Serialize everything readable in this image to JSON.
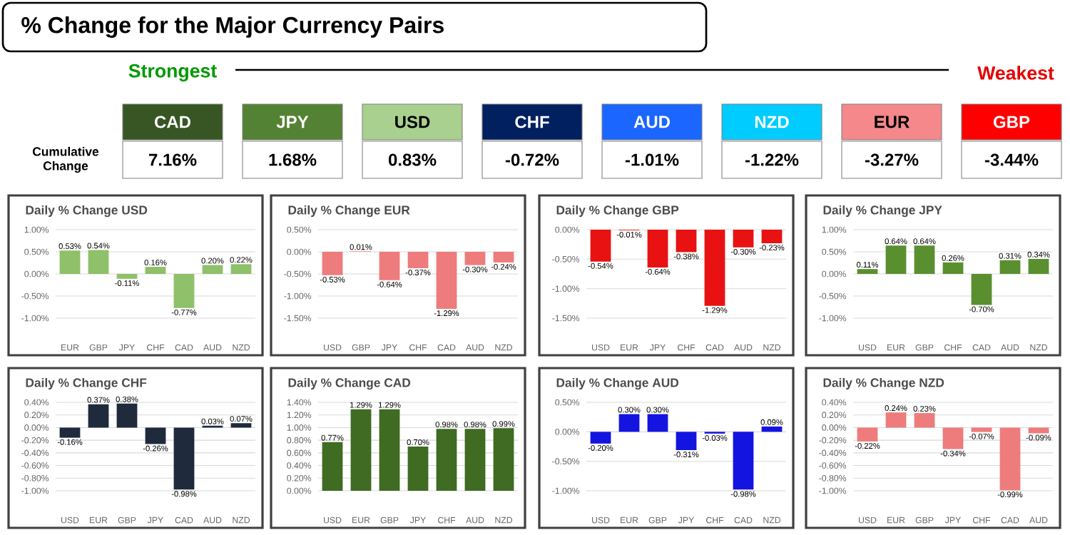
{
  "chart_data": [
    {
      "type": "other",
      "title": "% Change for the Major Currency Pairs",
      "categories": [
        "CAD",
        "JPY",
        "USD",
        "CHF",
        "AUD",
        "NZD",
        "EUR",
        "GBP"
      ],
      "value_labels": [
        "7.16%",
        "1.68%",
        "0.83%",
        "-0.72%",
        "-1.01%",
        "-1.22%",
        "-3.27%",
        "-3.44%"
      ],
      "colors": [
        "#375623",
        "#548235",
        "#a9d08e",
        "#002060",
        "#1a66ff",
        "#00ccff",
        "#f4888a",
        "#ff0000"
      ],
      "annotations": [
        "Strongest",
        "Weakest",
        "Cumulative Change"
      ]
    },
    {
      "type": "bar",
      "title": "Daily % Change USD",
      "categories": [
        "EUR",
        "GBP",
        "JPY",
        "CHF",
        "CAD",
        "AUD",
        "NZD"
      ],
      "values": [
        0.53,
        0.54,
        -0.11,
        0.16,
        -0.77,
        0.2,
        0.22
      ],
      "value_labels": [
        "0.53%",
        "0.54%",
        "-0.11%",
        "0.16%",
        "-0.77%",
        "0.20%",
        "0.22%"
      ],
      "color": "#8fc06a",
      "ylim": [
        -1,
        1
      ],
      "yticks": [
        {
          "value": -1,
          "label": "-1.00%"
        },
        {
          "value": -0.5,
          "label": "-0.50%"
        },
        {
          "value": 0,
          "label": "0.00%"
        },
        {
          "value": 0.5,
          "label": "0.50%"
        },
        {
          "value": 1,
          "label": "1.00%"
        }
      ],
      "grid": "y"
    },
    {
      "type": "bar",
      "title": "Daily % Change EUR",
      "categories": [
        "USD",
        "GBP",
        "JPY",
        "CHF",
        "CAD",
        "AUD",
        "NZD"
      ],
      "values": [
        -0.53,
        0.01,
        -0.64,
        -0.37,
        -1.29,
        -0.3,
        -0.24
      ],
      "value_labels": [
        "-0.53%",
        "0.01%",
        "-0.64%",
        "-0.37%",
        "-1.29%",
        "-0.30%",
        "-0.24%"
      ],
      "color": "#ee7c7c",
      "ylim": [
        -1.5,
        0.5
      ],
      "yticks": [
        {
          "value": -1.5,
          "label": "-1.50%"
        },
        {
          "value": -1,
          "label": "-1.00%"
        },
        {
          "value": -0.5,
          "label": "-0.50%"
        },
        {
          "value": 0,
          "label": "0.00%"
        },
        {
          "value": 0.5,
          "label": "0.50%"
        }
      ],
      "grid": "y"
    },
    {
      "type": "bar",
      "title": "Daily % Change GBP",
      "categories": [
        "USD",
        "EUR",
        "JPY",
        "CHF",
        "CAD",
        "AUD",
        "NZD"
      ],
      "values": [
        -0.54,
        -0.01,
        -0.64,
        -0.38,
        -1.29,
        -0.3,
        -0.23
      ],
      "value_labels": [
        "-0.54%",
        "-0.01%",
        "-0.64%",
        "-0.38%",
        "-1.29%",
        "-0.30%",
        "-0.23%"
      ],
      "color": "#e81212",
      "ylim": [
        -1.5,
        0
      ],
      "yticks": [
        {
          "value": -1.5,
          "label": "-1.50%"
        },
        {
          "value": -1,
          "label": "-1.00%"
        },
        {
          "value": -0.5,
          "label": "-0.50%"
        },
        {
          "value": 0,
          "label": "0.00%"
        }
      ],
      "grid": "y"
    },
    {
      "type": "bar",
      "title": "Daily % Change JPY",
      "categories": [
        "USD",
        "EUR",
        "GBP",
        "CHF",
        "CAD",
        "AUD",
        "NZD"
      ],
      "values": [
        0.11,
        0.64,
        0.64,
        0.26,
        -0.7,
        0.31,
        0.34
      ],
      "value_labels": [
        "0.11%",
        "0.64%",
        "0.64%",
        "0.26%",
        "-0.70%",
        "0.31%",
        "0.34%"
      ],
      "color": "#5a8f2f",
      "ylim": [
        -1,
        1
      ],
      "yticks": [
        {
          "value": -1,
          "label": "-1.00%"
        },
        {
          "value": -0.5,
          "label": "-0.50%"
        },
        {
          "value": 0,
          "label": "0.00%"
        },
        {
          "value": 0.5,
          "label": "0.50%"
        },
        {
          "value": 1,
          "label": "1.00%"
        }
      ],
      "grid": "y"
    },
    {
      "type": "bar",
      "title": "Daily % Change CHF",
      "categories": [
        "USD",
        "EUR",
        "GBP",
        "JPY",
        "CAD",
        "AUD",
        "NZD"
      ],
      "values": [
        -0.16,
        0.37,
        0.38,
        -0.26,
        -0.98,
        0.03,
        0.07
      ],
      "value_labels": [
        "-0.16%",
        "0.37%",
        "0.38%",
        "-0.26%",
        "-0.98%",
        "0.03%",
        "0.07%"
      ],
      "color": "#1f2a3c",
      "ylim": [
        -1,
        0.4
      ],
      "yticks": [
        {
          "value": -1,
          "label": "-1.00%"
        },
        {
          "value": -0.8,
          "label": "-0.80%"
        },
        {
          "value": -0.6,
          "label": "-0.60%"
        },
        {
          "value": -0.4,
          "label": "-0.40%"
        },
        {
          "value": -0.2,
          "label": "-0.20%"
        },
        {
          "value": 0,
          "label": "0.00%"
        },
        {
          "value": 0.2,
          "label": "0.20%"
        },
        {
          "value": 0.4,
          "label": "0.40%"
        }
      ],
      "grid": "y"
    },
    {
      "type": "bar",
      "title": "Daily % Change CAD",
      "categories": [
        "USD",
        "EUR",
        "GBP",
        "JPY",
        "CHF",
        "AUD",
        "NZD"
      ],
      "values": [
        0.77,
        1.29,
        1.29,
        0.7,
        0.98,
        0.98,
        0.99
      ],
      "value_labels": [
        "0.77%",
        "1.29%",
        "1.29%",
        "0.70%",
        "0.98%",
        "0.98%",
        "0.99%"
      ],
      "color": "#3f6b22",
      "ylim": [
        0,
        1.4
      ],
      "yticks": [
        {
          "value": 0,
          "label": "0.00%"
        },
        {
          "value": 0.2,
          "label": "0.20%"
        },
        {
          "value": 0.4,
          "label": "0.40%"
        },
        {
          "value": 0.6,
          "label": "0.60%"
        },
        {
          "value": 0.8,
          "label": "0.80%"
        },
        {
          "value": 1,
          "label": "1.00%"
        },
        {
          "value": 1.2,
          "label": "1.20%"
        },
        {
          "value": 1.4,
          "label": "1.40%"
        }
      ],
      "grid": "y"
    },
    {
      "type": "bar",
      "title": "Daily % Change AUD",
      "categories": [
        "USD",
        "EUR",
        "GBP",
        "JPY",
        "CHF",
        "CAD",
        "NZD"
      ],
      "values": [
        -0.2,
        0.3,
        0.3,
        -0.31,
        -0.03,
        -0.98,
        0.09
      ],
      "value_labels": [
        "-0.20%",
        "0.30%",
        "0.30%",
        "-0.31%",
        "-0.03%",
        "-0.98%",
        "0.09%"
      ],
      "color": "#1414e0",
      "ylim": [
        -1,
        0.5
      ],
      "yticks": [
        {
          "value": -1,
          "label": "-1.00%"
        },
        {
          "value": -0.5,
          "label": "-0.50%"
        },
        {
          "value": 0,
          "label": "0.00%"
        },
        {
          "value": 0.5,
          "label": "0.50%"
        }
      ],
      "grid": "y"
    },
    {
      "type": "bar",
      "title": "Daily % Change NZD",
      "categories": [
        "USD",
        "EUR",
        "GBP",
        "JPY",
        "CHF",
        "CAD",
        "AUD"
      ],
      "values": [
        -0.22,
        0.24,
        0.23,
        -0.34,
        -0.07,
        -0.99,
        -0.09
      ],
      "value_labels": [
        "-0.22%",
        "0.24%",
        "0.23%",
        "-0.34%",
        "-0.07%",
        "-0.99%",
        "-0.09%"
      ],
      "color": "#ee7c7c",
      "ylim": [
        -1,
        0.4
      ],
      "yticks": [
        {
          "value": -1,
          "label": "-1.00%"
        },
        {
          "value": -0.8,
          "label": "-0.80%"
        },
        {
          "value": -0.6,
          "label": "-0.60%"
        },
        {
          "value": -0.4,
          "label": "-0.40%"
        },
        {
          "value": -0.2,
          "label": "-0.20%"
        },
        {
          "value": 0,
          "label": "0.00%"
        },
        {
          "value": 0.2,
          "label": "0.20%"
        },
        {
          "value": 0.4,
          "label": "0.40%"
        }
      ],
      "grid": "y"
    }
  ]
}
